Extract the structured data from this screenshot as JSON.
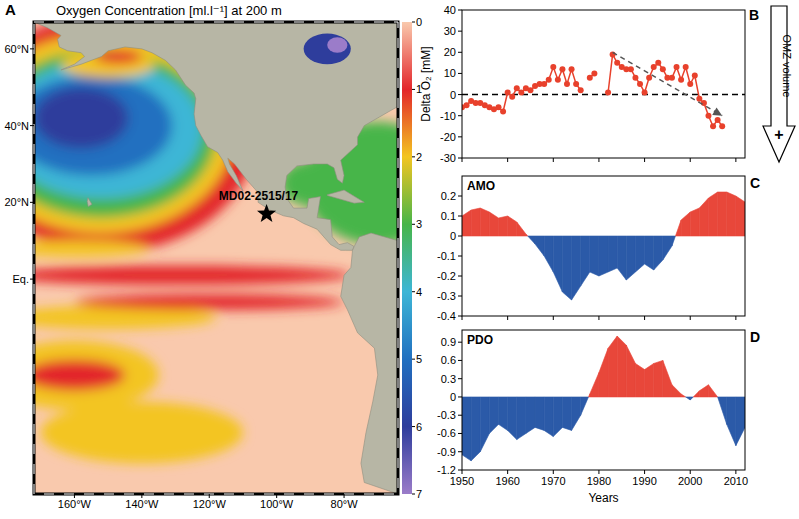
{
  "chart_data": [
    {
      "type": "map",
      "panel": "A",
      "title": "Oxygen Concentration [ml.l⁻¹] at 200 m",
      "xlim": [
        -172,
        -64
      ],
      "ylim": [
        -56,
        67
      ],
      "xticks": [
        {
          "value": -160,
          "label": "160°W"
        },
        {
          "value": -140,
          "label": "140°W"
        },
        {
          "value": -120,
          "label": "120°W"
        },
        {
          "value": -100,
          "label": "100°W"
        },
        {
          "value": -80,
          "label": "80°W"
        }
      ],
      "yticks": [
        {
          "value": 0,
          "label": "Eq."
        },
        {
          "value": 20,
          "label": "20°N"
        },
        {
          "value": 40,
          "label": "40°N"
        },
        {
          "value": 60,
          "label": "60°N"
        }
      ],
      "colorbar": {
        "range": [
          0,
          7
        ],
        "ticks": [
          0,
          1,
          2,
          3,
          4,
          5,
          6,
          7
        ],
        "colors": [
          "#f9c9ad",
          "#e3262b",
          "#f3c520",
          "#47b549",
          "#3db6d6",
          "#2170c0",
          "#2e3d9c",
          "#9b7cc9"
        ]
      },
      "points": [
        {
          "x": -103,
          "y": 17,
          "label": "MD02-2515/17",
          "marker": "star"
        }
      ]
    },
    {
      "type": "line",
      "panel": "B",
      "y_label": "Delta O₂ [mM]",
      "x": [
        1950,
        1951,
        1952,
        1953,
        1954,
        1955,
        1956,
        1957,
        1958,
        1959,
        1960,
        1961,
        1962,
        1963,
        1964,
        1965,
        1966,
        1967,
        1968,
        1969,
        1970,
        1971,
        1972,
        1973,
        1974,
        1975,
        1976,
        1977,
        1978,
        1979,
        1980,
        1981,
        1982,
        1983,
        1984,
        1985,
        1986,
        1987,
        1988,
        1989,
        1990,
        1991,
        1992,
        1993,
        1994,
        1995,
        1996,
        1997,
        1998,
        1999,
        2000,
        2001,
        2002,
        2003,
        2004,
        2005,
        2006,
        2007
      ],
      "series": [
        {
          "color": "#e8412c",
          "marker": "circle",
          "line_style": "solid",
          "values": [
            -6,
            -5,
            -3,
            -4,
            -4,
            -5,
            -6,
            -7,
            -6,
            -8,
            1,
            -1,
            3,
            1,
            3,
            2,
            4,
            5,
            5,
            7,
            13,
            7,
            12,
            5,
            12,
            5,
            2,
            null,
            8,
            10,
            null,
            null,
            1,
            19,
            15,
            13,
            12,
            12,
            8,
            5,
            1,
            8,
            13,
            15,
            12,
            8,
            8,
            13,
            7,
            13,
            5,
            9,
            -2,
            -4,
            -10,
            -15,
            -12,
            -15
          ]
        },
        {
          "color": "#555555",
          "marker": "arrow",
          "line_style": "dashed",
          "x": [
            1983,
            2007
          ],
          "values": [
            20,
            -10
          ]
        }
      ],
      "reference_line": 0,
      "xlim": [
        1950,
        2012
      ],
      "ylim": [
        -30,
        40
      ],
      "xticks": [
        1950,
        1960,
        1970,
        1980,
        1990,
        2000,
        2010
      ],
      "yticks": [
        -30,
        -20,
        -10,
        0,
        10,
        20,
        30,
        40
      ],
      "tick_labels": "y",
      "annotations": [
        "OMZ volume",
        "+"
      ]
    },
    {
      "type": "area",
      "panel": "C",
      "title": "AMO",
      "x": [
        1950,
        1952,
        1954,
        1956,
        1958,
        1960,
        1962,
        1964,
        1966,
        1968,
        1970,
        1972,
        1974,
        1976,
        1978,
        1980,
        1982,
        1984,
        1986,
        1988,
        1990,
        1992,
        1994,
        1996,
        1998,
        2000,
        2002,
        2004,
        2006,
        2008,
        2010,
        2012
      ],
      "series": [
        {
          "values": [
            0.1,
            0.13,
            0.14,
            0.12,
            0.09,
            0.1,
            0.07,
            0.01,
            -0.04,
            -0.1,
            -0.18,
            -0.28,
            -0.32,
            -0.25,
            -0.18,
            -0.2,
            -0.18,
            -0.16,
            -0.22,
            -0.18,
            -0.14,
            -0.17,
            -0.12,
            -0.05,
            0.08,
            0.12,
            0.14,
            0.19,
            0.22,
            0.22,
            0.2,
            0.17
          ],
          "colors": [
            "#e8473a",
            "#e8473a",
            "#e8473a",
            "#e8473a",
            "#e8473a",
            "#e8473a",
            "#e8473a",
            "#e8473a",
            "#2b5aa8",
            "#2b5aa8",
            "#2b5aa8",
            "#2b5aa8",
            "#2b5aa8",
            "#2b5aa8",
            "#2b5aa8",
            "#2b5aa8",
            "#2b5aa8",
            "#2b5aa8",
            "#2b5aa8",
            "#2b5aa8",
            "#2b5aa8",
            "#2b5aa8",
            "#2b5aa8",
            "#2b5aa8",
            "#e8473a",
            "#e8473a",
            "#e8473a",
            "#e8473a",
            "#e8473a",
            "#e8473a",
            "#e8473a",
            "#e8473a"
          ]
        }
      ],
      "xlim": [
        1950,
        2012
      ],
      "ylim": [
        -0.4,
        0.3
      ],
      "xticks": [
        1950,
        1960,
        1970,
        1980,
        1990,
        2000,
        2010
      ],
      "yticks": [
        -0.4,
        -0.3,
        -0.2,
        -0.1,
        0,
        0.1,
        0.2
      ],
      "tick_labels": "y"
    },
    {
      "type": "area",
      "panel": "D",
      "title": "PDO",
      "x_label": "Years",
      "x": [
        1950,
        1952,
        1954,
        1956,
        1958,
        1960,
        1962,
        1964,
        1966,
        1968,
        1970,
        1972,
        1974,
        1976,
        1978,
        1980,
        1982,
        1984,
        1986,
        1988,
        1990,
        1992,
        1994,
        1996,
        1998,
        2000,
        2002,
        2004,
        2006,
        2008,
        2010,
        2012
      ],
      "series": [
        {
          "values": [
            -0.95,
            -1.05,
            -0.9,
            -0.6,
            -0.45,
            -0.55,
            -0.7,
            -0.6,
            -0.5,
            -0.55,
            -0.65,
            -0.5,
            -0.55,
            -0.3,
            0.05,
            0.4,
            0.8,
            1.0,
            0.85,
            0.55,
            0.45,
            0.55,
            0.6,
            0.2,
            0.05,
            -0.05,
            0.1,
            0.2,
            0.0,
            -0.45,
            -0.8,
            -0.5
          ],
          "colors": [
            "#2b5aa8",
            "#2b5aa8",
            "#2b5aa8",
            "#2b5aa8",
            "#2b5aa8",
            "#2b5aa8",
            "#2b5aa8",
            "#2b5aa8",
            "#2b5aa8",
            "#2b5aa8",
            "#2b5aa8",
            "#2b5aa8",
            "#2b5aa8",
            "#2b5aa8",
            "#e8473a",
            "#e8473a",
            "#e8473a",
            "#e8473a",
            "#e8473a",
            "#e8473a",
            "#e8473a",
            "#e8473a",
            "#e8473a",
            "#e8473a",
            "#e8473a",
            "#2b5aa8",
            "#e8473a",
            "#e8473a",
            "#e8473a",
            "#2b5aa8",
            "#2b5aa8",
            "#2b5aa8"
          ]
        }
      ],
      "xlim": [
        1950,
        2012
      ],
      "ylim": [
        -1.2,
        1.1
      ],
      "xticks": [
        1950,
        1960,
        1970,
        1980,
        1990,
        2000,
        2010
      ],
      "yticks": [
        -1.2,
        -0.9,
        -0.6,
        -0.3,
        0,
        0.3,
        0.6,
        0.9
      ]
    }
  ]
}
